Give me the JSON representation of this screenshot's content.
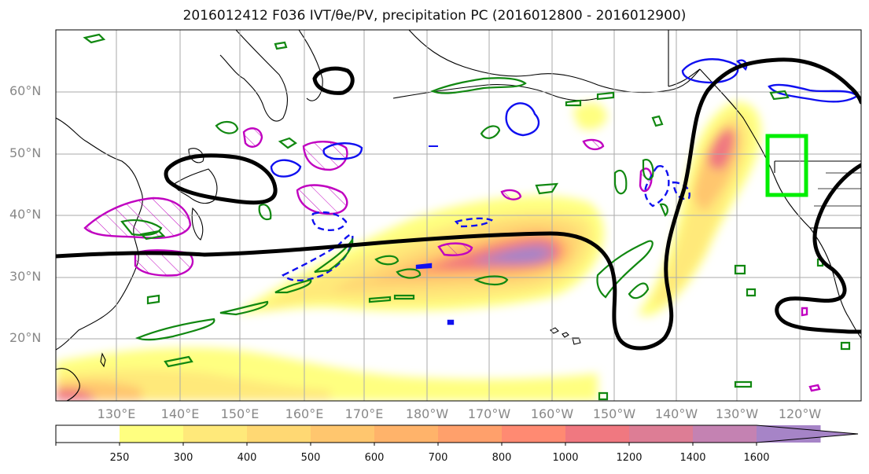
{
  "title": "2016012412 F036 IVT/θe/PV, precipitation PC (2016012800 - 2016012900)",
  "latitude_labels": [
    "60°N",
    "50°N",
    "40°N",
    "30°N",
    "20°N"
  ],
  "longitude_labels": [
    "130°E",
    "140°E",
    "150°E",
    "160°E",
    "170°E",
    "180°W",
    "170°W",
    "160°W",
    "150°W",
    "140°W",
    "130°W",
    "120°W"
  ],
  "colorbar": {
    "tick_labels": [
      "250",
      "300",
      "400",
      "500",
      "600",
      "700",
      "800",
      "1000",
      "1200",
      "1400",
      "1600"
    ],
    "colors": [
      "#ffffff",
      "#ffff80",
      "#ffe97a",
      "#ffd873",
      "#ffc66e",
      "#ffb36a",
      "#ffa06b",
      "#ff8a72",
      "#f07880",
      "#dd7d95",
      "#c482b2",
      "#a684c7"
    ],
    "extend": "max"
  },
  "map_legend": {
    "ivt": "filled contours",
    "theta_e": "black contour",
    "pv_positive": "magenta contours (hatched)",
    "pv_negative": "blue contours (dashed)",
    "precip_pc": "green contours",
    "target_box": "bright green rectangle"
  },
  "colors": {
    "theta_e": "#000000",
    "pv_pos": "#c000c0",
    "pv_neg": "#1010f0",
    "precip": "#118811",
    "box": "#00ee00",
    "grid": "#aaaaaa",
    "axis_labels": "#888888"
  }
}
